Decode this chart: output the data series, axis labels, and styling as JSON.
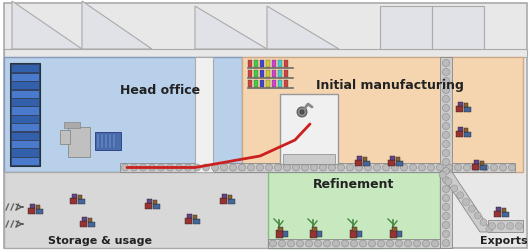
{
  "fig_width": 5.31,
  "fig_height": 2.53,
  "dpi": 100,
  "bg_fig": "#ffffff",
  "wall_fill": "#e8e8e8",
  "wall_edge": "#aaaaaa",
  "roof_fill": "#e0e2e8",
  "roof_edge": "#aaaaaa",
  "head_office_color": "#b8d0ea",
  "head_office_edge": "#8899bb",
  "init_mfg_color": "#f5d5b0",
  "init_mfg_edge": "#ccaa88",
  "storage_color": "#d8d8d8",
  "storage_edge": "#aaaaaa",
  "refinement_color": "#c8e8c0",
  "refinement_edge": "#88bb88",
  "conveyor_fill": "#cccccc",
  "conveyor_edge": "#888888",
  "conveyor_dot": "#bbbbbb",
  "red_line": "#cc2020",
  "server_blue": "#4a7acc",
  "server_dark": "#334466",
  "machine_red": "#993333",
  "machine_blue": "#446699",
  "machine_brown": "#8a6030",
  "machine_purple": "#664488",
  "plant_green": "#448844",
  "gray_machine": "#aaaaaa",
  "white_box": "#f0f0f0",
  "title_head": "Head office",
  "title_init": "Initial manufacturing",
  "title_storage": "Storage & usage",
  "title_refinement": "Refinement",
  "title_exports": "Exports",
  "font_large": 9,
  "font_small": 8
}
